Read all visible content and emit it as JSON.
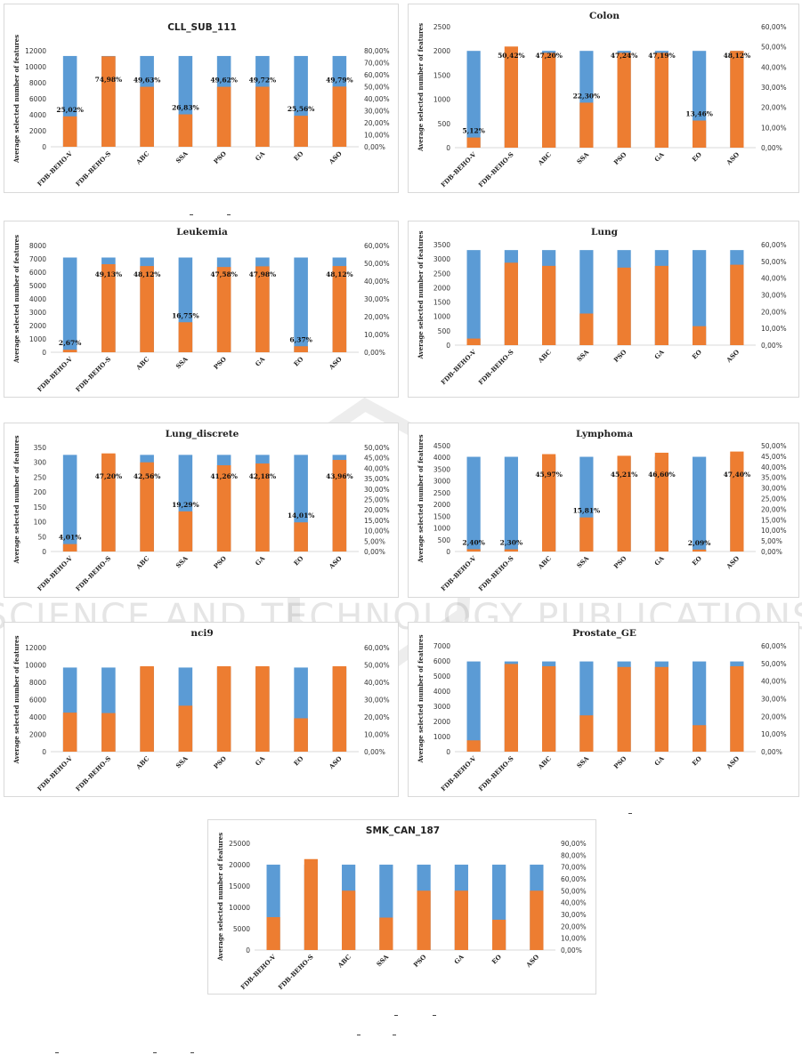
{
  "colors": {
    "total": "#5b9bd5",
    "selected": "#ed7d31",
    "grid": "#d9d9d9",
    "axis": "#8c8c8c"
  },
  "watermark": "SCIENCE AND TECHNOLOGY PUBLICATIONS",
  "chart_data": [
    {
      "type": "bar",
      "title": "CLL_SUB_111",
      "ylabel": "Average selected number of features",
      "categories": [
        "FDB-BEHO-V",
        "FDB-BEHO-S",
        "ABC",
        "SSA",
        "PSO",
        "GA",
        "EO",
        "ASO"
      ],
      "series": [
        {
          "values": [
            11340,
            11340,
            11340,
            11340,
            11340,
            11340,
            11340,
            11340
          ]
        },
        {
          "values": [
            3800,
            11300,
            7490,
            4050,
            7490,
            7500,
            3870,
            7520
          ]
        }
      ],
      "labels": [
        "25,02%",
        "74,98%",
        "49,63%",
        "26,83%",
        "49,62%",
        "49,72%",
        "25,56%",
        "49,79%"
      ],
      "ylim": [
        0,
        12000
      ],
      "ystep": 2000,
      "y2lim": [
        0,
        80
      ],
      "y2step": 10
    },
    {
      "type": "bar",
      "title": "Colon",
      "ylabel": "Average selected number of features",
      "categories": [
        "FDB-BEHO-V",
        "FDB-BEHO-S",
        "ABC",
        "SSA",
        "PSO",
        "GA",
        "EO",
        "ASO"
      ],
      "series": [
        {
          "values": [
            2000,
            2000,
            2000,
            2000,
            2000,
            2000,
            2000,
            2000
          ]
        },
        {
          "values": [
            210,
            2090,
            1960,
            930,
            1960,
            1960,
            560,
            2000
          ]
        }
      ],
      "labels": [
        "5,12%",
        "50,42%",
        "47,20%",
        "22,30%",
        "47,24%",
        "47,19%",
        "13,46%",
        "48,12%"
      ],
      "ylim": [
        0,
        2500
      ],
      "ystep": 500,
      "y2lim": [
        0,
        60
      ],
      "y2step": 10
    },
    {
      "type": "bar",
      "title": "Leukemia",
      "ylabel": "Average selected number of features",
      "categories": [
        "FDB-BEHO-V",
        "FDB-BEHO-S",
        "ABC",
        "SSA",
        "PSO",
        "GA",
        "EO",
        "ASO"
      ],
      "series": [
        {
          "values": [
            7100,
            7100,
            7100,
            7100,
            7100,
            7100,
            7100,
            7100
          ]
        },
        {
          "values": [
            190,
            6600,
            6460,
            2250,
            6390,
            6440,
            450,
            6460
          ]
        }
      ],
      "labels": [
        "2,67%",
        "49,13%",
        "48,12%",
        "16,75%",
        "47,58%",
        "47,98%",
        "6,37%",
        "48,12%"
      ],
      "ylim": [
        0,
        8000
      ],
      "ystep": 1000,
      "y2lim": [
        0,
        60
      ],
      "y2step": 10
    },
    {
      "type": "bar",
      "title": "Lung",
      "ylabel": "Average selected number of features",
      "categories": [
        "FDB-BEHO-V",
        "FDB-BEHO-S",
        "ABC",
        "SSA",
        "PSO",
        "GA",
        "EO",
        "ASO"
      ],
      "series": [
        {
          "values": [
            3310,
            3310,
            3310,
            3310,
            3310,
            3310,
            3310,
            3310
          ]
        },
        {
          "values": [
            230,
            2870,
            2760,
            1100,
            2700,
            2760,
            660,
            2800
          ]
        }
      ],
      "labels": [
        "",
        "",
        "",
        "",
        "",
        "",
        "",
        ""
      ],
      "ylim": [
        0,
        3500
      ],
      "ystep": 500,
      "y2lim": [
        0,
        60
      ],
      "y2step": 10
    },
    {
      "type": "bar",
      "title": "Lung_discrete",
      "ylabel": "Average selected number of features",
      "categories": [
        "FDB-BEHO-V",
        "FDB-BEHO-S",
        "ABC",
        "SSA",
        "PSO",
        "GA",
        "EO",
        "ASO"
      ],
      "series": [
        {
          "values": [
            325,
            325,
            325,
            325,
            325,
            325,
            325,
            325
          ]
        },
        {
          "values": [
            25,
            330,
            300,
            135,
            290,
            296,
            98,
            308
          ]
        }
      ],
      "labels": [
        "4,01%",
        "47,20%",
        "42,56%",
        "19,29%",
        "41,26%",
        "42,18%",
        "14,01%",
        "43,96%"
      ],
      "ylim": [
        0,
        350
      ],
      "ystep": 50,
      "y2lim": [
        0,
        50
      ],
      "y2step": 5
    },
    {
      "type": "bar",
      "title": "Lymphoma",
      "ylabel": "Average selected number of features",
      "categories": [
        "FDB-BEHO-V",
        "FDB-BEHO-S",
        "ABC",
        "SSA",
        "PSO",
        "GA",
        "EO",
        "ASO"
      ],
      "series": [
        {
          "values": [
            4026,
            4026,
            4026,
            4026,
            4026,
            4026,
            4026,
            4026
          ]
        },
        {
          "values": [
            97,
            93,
            4140,
            1450,
            4070,
            4200,
            84,
            4250
          ]
        }
      ],
      "labels": [
        "2,40%",
        "2,30%",
        "45,97%",
        "15,81%",
        "45,21%",
        "46,60%",
        "2,09%",
        "47,40%"
      ],
      "ylim": [
        0,
        4500
      ],
      "ystep": 500,
      "y2lim": [
        0,
        50
      ],
      "y2step": 5
    },
    {
      "type": "bar",
      "title": "nci9",
      "ylabel": "Average selected number of features",
      "categories": [
        "FDB-BEHO-V",
        "FDB-BEHO-S",
        "ABC",
        "SSA",
        "PSO",
        "GA",
        "EO",
        "ASO"
      ],
      "series": [
        {
          "values": [
            9700,
            9700,
            9700,
            9700,
            9700,
            9700,
            9700,
            9700
          ]
        },
        {
          "values": [
            4500,
            4450,
            9850,
            5300,
            9850,
            9850,
            3850,
            9850
          ]
        }
      ],
      "labels": [
        "",
        "",
        "",
        "",
        "",
        "",
        "",
        ""
      ],
      "ylim": [
        0,
        12000
      ],
      "ystep": 2000,
      "y2lim": [
        0,
        60
      ],
      "y2step": 10
    },
    {
      "type": "bar",
      "title": "Prostate_GE",
      "ylabel": "Average selected number of features",
      "categories": [
        "FDB-BEHO-V",
        "FDB-BEHO-S",
        "ABC",
        "SSA",
        "PSO",
        "GA",
        "EO",
        "ASO"
      ],
      "series": [
        {
          "values": [
            5966,
            5966,
            5966,
            5966,
            5966,
            5966,
            5966,
            5966
          ]
        },
        {
          "values": [
            750,
            5800,
            5650,
            2400,
            5600,
            5600,
            1750,
            5650
          ]
        }
      ],
      "labels": [
        "",
        "",
        "",
        "",
        "",
        "",
        "",
        ""
      ],
      "ylim": [
        0,
        7000
      ],
      "ystep": 1000,
      "y2lim": [
        0,
        60
      ],
      "y2step": 10
    },
    {
      "type": "bar",
      "title": "SMK_CAN_187",
      "ylabel": "Average selected number of features",
      "categories": [
        "FDB-BEHO-V",
        "FDB-BEHO-S",
        "ABC",
        "SSA",
        "PSO",
        "GA",
        "EO",
        "ASO"
      ],
      "series": [
        {
          "values": [
            19993,
            19993,
            19993,
            19993,
            19993,
            19993,
            19993,
            19993
          ]
        },
        {
          "values": [
            7700,
            21300,
            13900,
            7600,
            13900,
            13900,
            7100,
            13900
          ]
        }
      ],
      "labels": [
        "",
        "",
        "",
        "",
        "",
        "",
        "",
        ""
      ],
      "ylim": [
        0,
        25000
      ],
      "ystep": 5000,
      "y2lim": [
        0,
        90
      ],
      "y2step": 10
    }
  ]
}
